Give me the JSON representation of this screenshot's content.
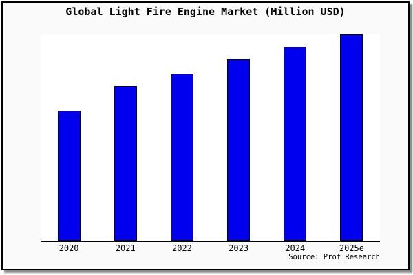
{
  "header": {
    "title": "Global Light Fire Engine Market (Million USD)"
  },
  "footer": {
    "source": "Source: Prof Research"
  },
  "colors": {
    "bar_fill": "#0000ee",
    "bar_edge": "#000000",
    "plot_background": "#ffffff",
    "page_background": "#fafafa",
    "frame_border": "#000000",
    "text": "#000000"
  },
  "chart_data": {
    "type": "bar",
    "title": "Global Light Fire Engine Market (Million USD)",
    "categories": [
      "2020",
      "2021",
      "2022",
      "2023",
      "2024",
      "2025e"
    ],
    "values": [
      63,
      75,
      81,
      88,
      94,
      100
    ],
    "values_estimated": true,
    "xlabel": "",
    "ylabel": "",
    "ylim": [
      0,
      101
    ],
    "grid": false,
    "legend": false,
    "y_axis_shown": false,
    "annotation": "Source: Prof Research"
  }
}
